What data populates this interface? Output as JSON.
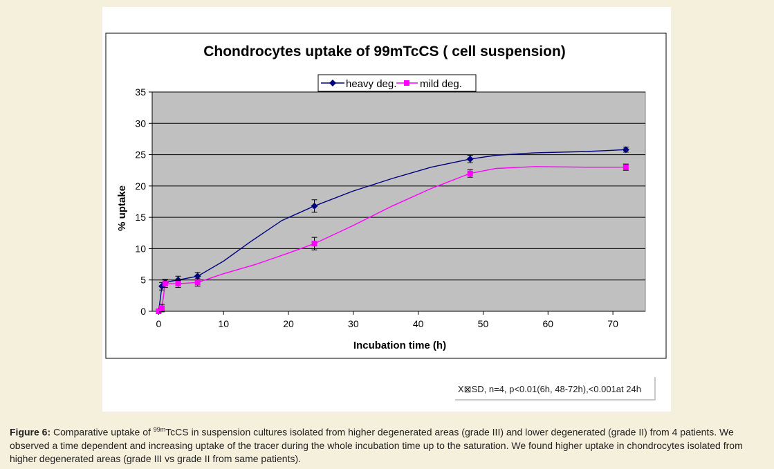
{
  "caption": {
    "label": "Figure 6:",
    "text_before": " Comparative uptake of ",
    "isotope_sup": "99m",
    "text_after": "TcCS in suspension cultures isolated from higher degenerated areas (grade III) and lower degenerated (grade II) from 4 patients. We observed a time dependent and increasing uptake of the tracer during the whole incubation time up to the saturation. We found higher uptake in chondrocytes isolated from higher degenerated areas (grade III vs grade II from same patients)."
  },
  "stats_note": "X⊠SD, n=4, p<0.01(6h, 48-72h),<0.001at 24h",
  "colors": {
    "heavy": "#000080",
    "mild": "#ff00ff",
    "plot_bg": "#c0c0c0",
    "panel_bg": "#f5f0dc"
  },
  "chart_data": {
    "type": "line",
    "title": "Chondrocytes uptake of 99mTcCS ( cell suspension)",
    "xlabel": "Incubation time (h)",
    "ylabel": "% uptake",
    "xlim": [
      -1,
      75
    ],
    "ylim": [
      0,
      35
    ],
    "x_ticks": [
      0,
      10,
      20,
      30,
      40,
      50,
      60,
      70
    ],
    "y_ticks": [
      0,
      5,
      10,
      15,
      20,
      25,
      30,
      35
    ],
    "grid": "horizontal",
    "legend_position": "top-center",
    "series": [
      {
        "name": "heavy deg.",
        "color": "#000080",
        "marker": "diamond",
        "x": [
          0,
          0.5,
          1,
          3,
          6,
          24,
          48,
          72
        ],
        "y": [
          0,
          4,
          4.6,
          5,
          5.6,
          16.8,
          24.3,
          25.8
        ],
        "err": [
          0,
          0.6,
          0.5,
          0.6,
          0.6,
          1,
          0.6,
          0.4
        ],
        "curve_x": [
          0,
          0.5,
          1,
          3,
          6,
          10,
          14,
          19,
          24,
          30,
          36,
          42,
          48,
          52,
          58,
          66,
          72
        ],
        "curve_y": [
          0,
          4,
          4.6,
          5,
          5.6,
          8,
          11,
          14.5,
          16.8,
          19.2,
          21.2,
          23,
          24.3,
          24.9,
          25.3,
          25.5,
          25.8
        ]
      },
      {
        "name": "mild deg.",
        "color": "#ff00ff",
        "marker": "square",
        "x": [
          0,
          0.5,
          1,
          3,
          6,
          24,
          48,
          72
        ],
        "y": [
          0,
          0.5,
          4.4,
          4.4,
          4.6,
          10.8,
          22,
          23
        ],
        "err": [
          0,
          0.6,
          0.6,
          0.6,
          0.6,
          1,
          0.6,
          0.5
        ],
        "curve_x": [
          0,
          0.5,
          1,
          3,
          6,
          10,
          15,
          20,
          24,
          30,
          36,
          42,
          46,
          48,
          52,
          58,
          66,
          72
        ],
        "curve_y": [
          0,
          0.5,
          4.4,
          4.4,
          4.6,
          6,
          7.5,
          9.3,
          10.8,
          13.7,
          16.8,
          19.6,
          21.2,
          22,
          22.8,
          23.1,
          23,
          23
        ]
      }
    ]
  }
}
